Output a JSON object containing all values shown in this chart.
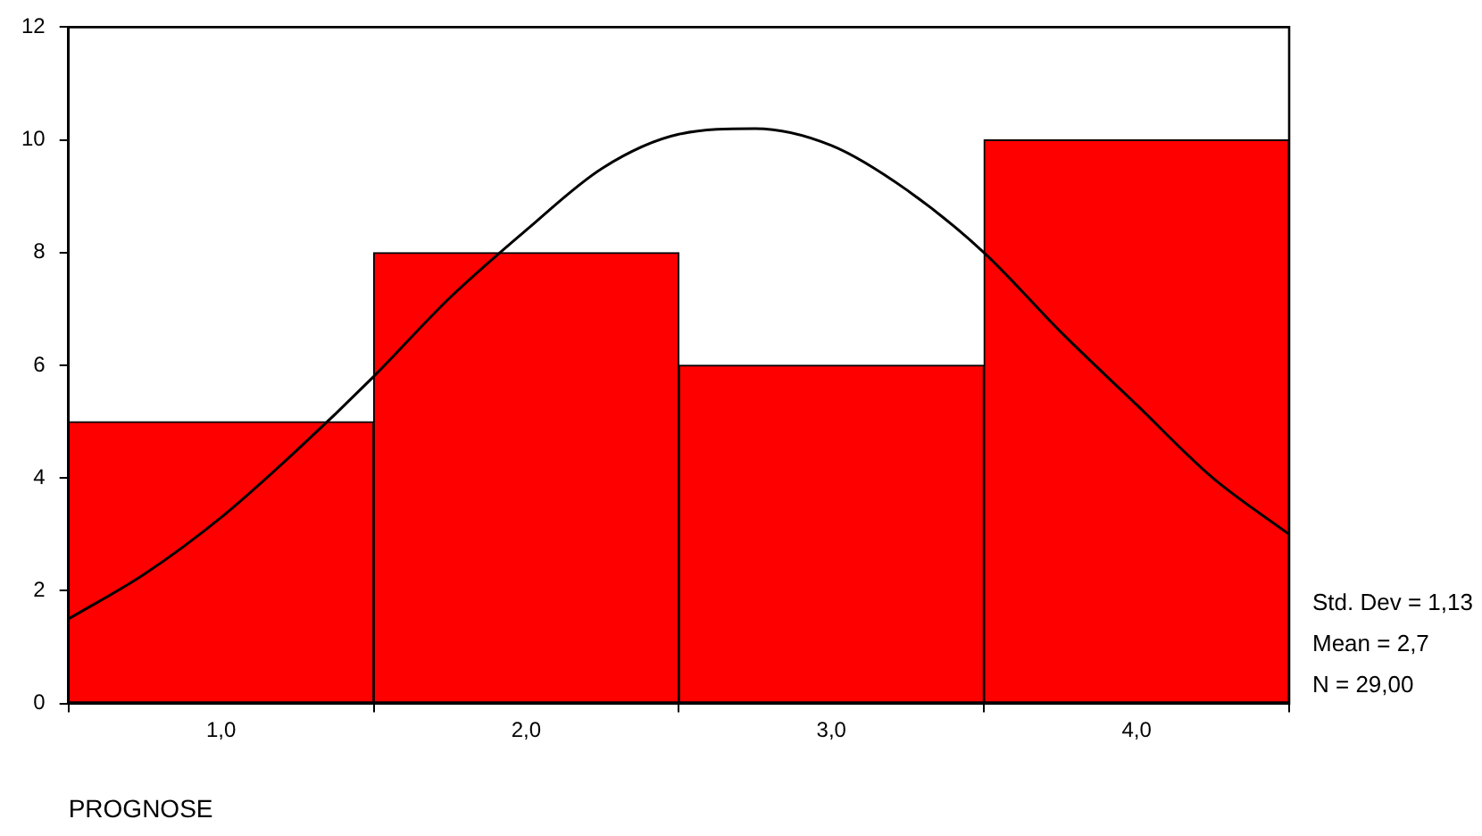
{
  "chart_data": {
    "type": "histogram",
    "xlabel": "PROGNOSE",
    "bins": [
      0.5,
      1.5,
      2.5,
      3.5,
      4.5
    ],
    "values": [
      5,
      8,
      6,
      10
    ],
    "color": "#ff0000",
    "series": [
      {
        "type": "line",
        "color": "#000000",
        "x": [
          0.5,
          0.75,
          1.0,
          1.25,
          1.5,
          1.75,
          2.0,
          2.25,
          2.5,
          2.75,
          3.0,
          3.25,
          3.5,
          3.75,
          4.0,
          4.25,
          4.5
        ],
        "values": [
          1.5,
          2.3,
          3.3,
          4.5,
          5.8,
          7.2,
          8.4,
          9.5,
          10.1,
          10.2,
          9.9,
          9.1,
          8.0,
          6.6,
          5.3,
          4.0,
          3.0
        ]
      }
    ],
    "xlim": [
      0.5,
      4.5
    ],
    "xticks": [
      {
        "value": 1,
        "label": "1,0"
      },
      {
        "value": 2,
        "label": "2,0"
      },
      {
        "value": 3,
        "label": "3,0"
      },
      {
        "value": 4,
        "label": "4,0"
      }
    ],
    "ylim": [
      0,
      12
    ],
    "yticks": [
      0,
      2,
      4,
      6,
      8,
      10,
      12
    ],
    "grid": false,
    "legend": false,
    "marker": "none",
    "line_style": "solid",
    "annotations": [
      "Std. Dev = 1,13",
      "Mean = 2,7",
      "N = 29,00"
    ]
  }
}
